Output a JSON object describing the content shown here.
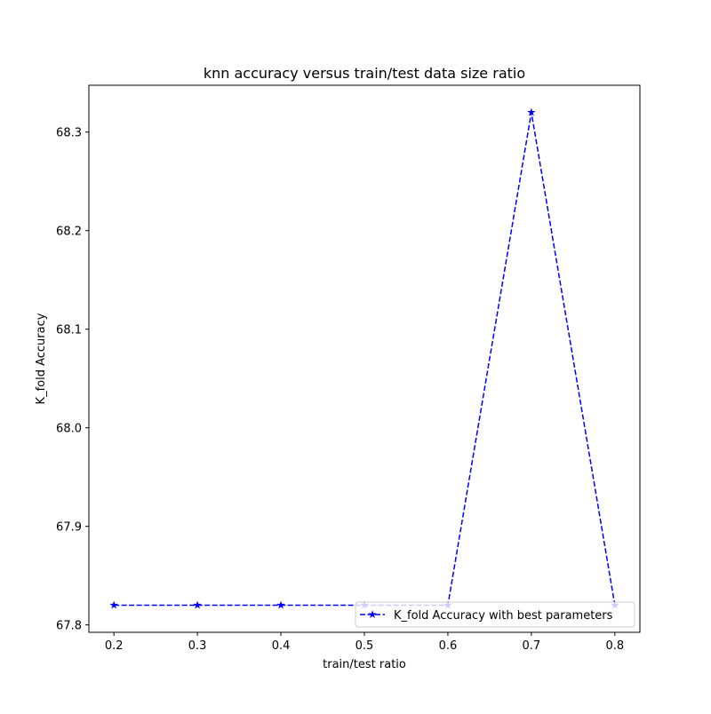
{
  "chart_data": {
    "type": "line",
    "title": "knn accuracy versus train/test data size ratio",
    "xlabel": "train/test ratio",
    "ylabel": "K_fold Accuracy",
    "xlim": [
      0.17,
      0.83
    ],
    "ylim": [
      67.7925,
      68.3475
    ],
    "x_ticks": [
      0.2,
      0.3,
      0.4,
      0.5,
      0.6,
      0.7,
      0.8
    ],
    "x_tick_labels": [
      "0.2",
      "0.3",
      "0.4",
      "0.5",
      "0.6",
      "0.7",
      "0.8"
    ],
    "y_ticks": [
      67.8,
      67.9,
      68.0,
      68.1,
      68.2,
      68.3
    ],
    "y_tick_labels": [
      "67.8",
      "67.9",
      "68.0",
      "68.1",
      "68.2",
      "68.3"
    ],
    "grid": false,
    "legend_position": "lower-right",
    "series": [
      {
        "name": "K_fold Accuracy with best parameters",
        "color": "#0000ff",
        "line_style": "dashed",
        "marker": "star",
        "x": [
          0.2,
          0.3,
          0.4,
          0.5,
          0.6,
          0.7,
          0.8
        ],
        "y": [
          67.82,
          67.82,
          67.82,
          67.82,
          67.82,
          68.32,
          67.82
        ]
      }
    ]
  }
}
